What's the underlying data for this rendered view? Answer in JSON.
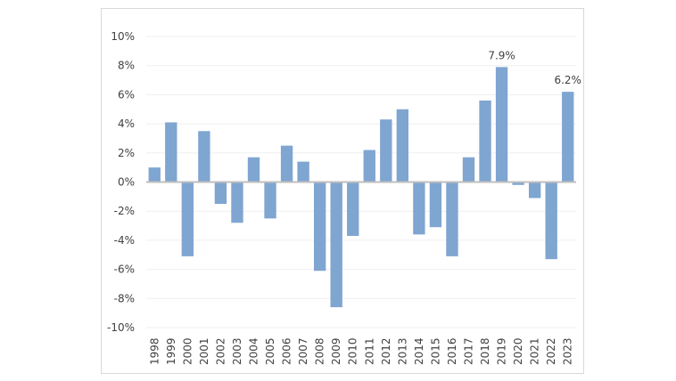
{
  "chart_data": {
    "type": "bar",
    "title": "",
    "xlabel": "",
    "ylabel": "",
    "categories": [
      "1998",
      "1999",
      "2000",
      "2001",
      "2002",
      "2003",
      "2004",
      "2005",
      "2006",
      "2007",
      "2008",
      "2009",
      "2010",
      "2011",
      "2012",
      "2013",
      "2014",
      "2015",
      "2016",
      "2017",
      "2018",
      "2019",
      "2020",
      "2021",
      "2022",
      "2023"
    ],
    "values": [
      1.0,
      4.1,
      -5.1,
      3.5,
      -1.5,
      -2.8,
      1.7,
      -2.5,
      2.5,
      1.4,
      -6.1,
      -8.6,
      -3.7,
      2.2,
      4.3,
      5.0,
      -3.6,
      -3.1,
      -5.1,
      1.7,
      5.6,
      7.9,
      -0.2,
      -1.1,
      -5.3,
      6.2
    ],
    "ylim": [
      -10,
      10
    ],
    "yticks": [
      -10,
      -8,
      -6,
      -4,
      -2,
      0,
      2,
      4,
      6,
      8,
      10
    ],
    "ytick_labels": [
      "-10%",
      "-8%",
      "-6%",
      "-4%",
      "-2%",
      "0%",
      "2%",
      "4%",
      "6%",
      "8%",
      "10%"
    ],
    "data_labels": [
      {
        "category": "2019",
        "text": "7.9%"
      },
      {
        "category": "2023",
        "text": "6.2%"
      }
    ],
    "grid": true,
    "legend": "none",
    "colors": {
      "bar": "#7fa5d1",
      "grid": "#efefef",
      "zero_line": "#bfbfbf"
    }
  }
}
